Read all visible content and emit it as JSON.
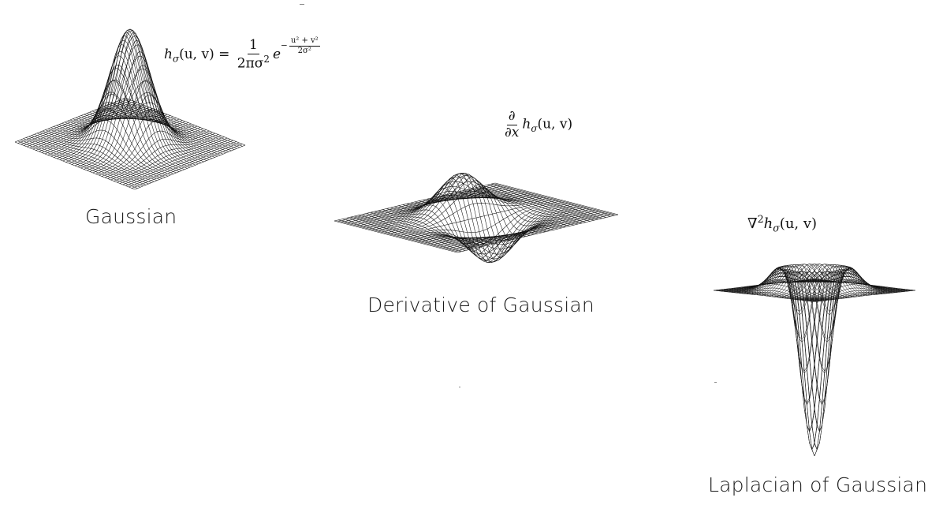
{
  "captions": {
    "gaussian": "Gaussian",
    "derivative": "Derivative of Gaussian",
    "laplacian": "Laplacian of Gaussian"
  },
  "formulas": {
    "gaussian": {
      "lhs": "h",
      "lhs_sub": "σ",
      "lhs_args": "(u, v) =",
      "num": "1",
      "den": "2πσ",
      "den_sup": "2",
      "base": "e",
      "exp_sign": "−",
      "exp_num": "u² + v²",
      "exp_den": "2σ²"
    },
    "derivative": {
      "num": "∂",
      "den": "∂x",
      "h": "h",
      "sub": "σ",
      "args": "(u, v)"
    },
    "laplacian": {
      "nabla": "∇",
      "sup": "2",
      "h": "h",
      "sub": "σ",
      "args": "(u, v)"
    }
  },
  "colors": {
    "background": "#ffffff",
    "mesh": "#111111",
    "text": "#1a1a1a"
  }
}
